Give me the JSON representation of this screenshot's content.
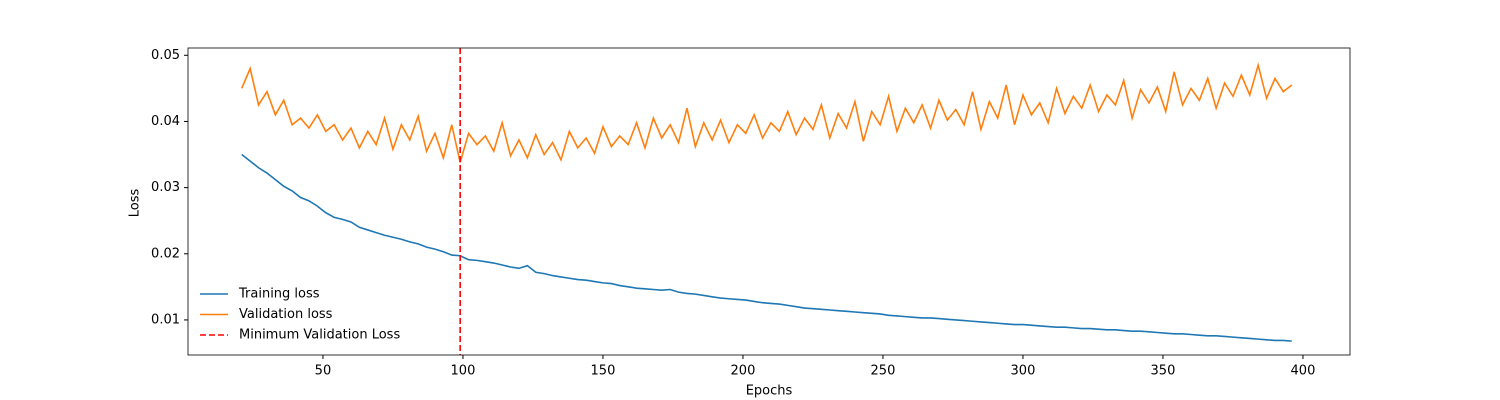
{
  "chart_data": {
    "type": "line",
    "xlabel": "Epochs",
    "ylabel": "Loss",
    "xlim": [
      1.8,
      416.8
    ],
    "ylim": [
      0.0047,
      0.0511
    ],
    "xticks": [
      50,
      100,
      150,
      200,
      250,
      300,
      350,
      400
    ],
    "yticks": [
      0.01,
      0.02,
      0.03,
      0.04,
      0.05
    ],
    "legend": "lower left",
    "x": [
      21,
      24,
      27,
      30,
      33,
      36,
      39,
      42,
      45,
      48,
      51,
      54,
      57,
      60,
      63,
      66,
      69,
      72,
      75,
      78,
      81,
      84,
      87,
      90,
      93,
      96,
      99,
      102,
      105,
      108,
      111,
      114,
      117,
      120,
      123,
      126,
      129,
      132,
      135,
      138,
      141,
      144,
      147,
      150,
      153,
      156,
      159,
      162,
      165,
      168,
      171,
      174,
      177,
      180,
      183,
      186,
      189,
      192,
      195,
      198,
      201,
      204,
      207,
      210,
      213,
      216,
      219,
      222,
      225,
      228,
      231,
      234,
      237,
      240,
      243,
      246,
      249,
      252,
      255,
      258,
      261,
      264,
      267,
      270,
      273,
      276,
      279,
      282,
      285,
      288,
      291,
      294,
      297,
      300,
      303,
      306,
      309,
      312,
      315,
      318,
      321,
      324,
      327,
      330,
      333,
      336,
      339,
      342,
      345,
      348,
      351,
      354,
      357,
      360,
      363,
      366,
      369,
      372,
      375,
      378,
      381,
      384,
      387,
      390,
      393,
      396
    ],
    "series": [
      {
        "name": "Training loss",
        "color": "#1f77b4",
        "values": [
          0.035,
          0.034,
          0.033,
          0.0322,
          0.0312,
          0.0302,
          0.0295,
          0.0285,
          0.028,
          0.0272,
          0.0262,
          0.0255,
          0.0252,
          0.0248,
          0.024,
          0.0236,
          0.0232,
          0.0228,
          0.0225,
          0.0222,
          0.0218,
          0.0215,
          0.021,
          0.0207,
          0.0203,
          0.0198,
          0.0197,
          0.0191,
          0.019,
          0.0188,
          0.0186,
          0.0183,
          0.018,
          0.0178,
          0.0182,
          0.0172,
          0.017,
          0.0167,
          0.0165,
          0.0163,
          0.0161,
          0.016,
          0.0158,
          0.0156,
          0.0155,
          0.0152,
          0.015,
          0.0148,
          0.0147,
          0.0146,
          0.0145,
          0.0146,
          0.0142,
          0.014,
          0.0139,
          0.0137,
          0.0135,
          0.0133,
          0.0132,
          0.0131,
          0.013,
          0.0128,
          0.0126,
          0.0125,
          0.0124,
          0.0122,
          0.012,
          0.0118,
          0.0117,
          0.0116,
          0.0115,
          0.0114,
          0.0113,
          0.0112,
          0.0111,
          0.011,
          0.0109,
          0.0107,
          0.0106,
          0.0105,
          0.0104,
          0.0103,
          0.0103,
          0.0102,
          0.0101,
          0.01,
          0.0099,
          0.0098,
          0.0097,
          0.0096,
          0.0095,
          0.0094,
          0.0093,
          0.0093,
          0.0092,
          0.0091,
          0.009,
          0.0089,
          0.0089,
          0.0088,
          0.0087,
          0.0087,
          0.0086,
          0.0085,
          0.0085,
          0.0084,
          0.0083,
          0.0083,
          0.0082,
          0.0081,
          0.008,
          0.0079,
          0.0079,
          0.0078,
          0.0077,
          0.0076,
          0.0076,
          0.0075,
          0.0074,
          0.0073,
          0.0072,
          0.0071,
          0.007,
          0.0069,
          0.0069,
          0.0068
        ]
      },
      {
        "name": "Validation loss",
        "color": "#ff7f0e",
        "values": [
          0.045,
          0.048,
          0.0425,
          0.0445,
          0.041,
          0.0432,
          0.0395,
          0.0405,
          0.039,
          0.041,
          0.0385,
          0.0395,
          0.0372,
          0.039,
          0.036,
          0.0385,
          0.0365,
          0.0405,
          0.0358,
          0.0395,
          0.0372,
          0.0408,
          0.0355,
          0.0382,
          0.0345,
          0.0395,
          0.0338,
          0.0382,
          0.0365,
          0.0378,
          0.0355,
          0.0398,
          0.0348,
          0.0372,
          0.0345,
          0.038,
          0.035,
          0.0368,
          0.0342,
          0.0385,
          0.036,
          0.0375,
          0.0352,
          0.0392,
          0.0362,
          0.0378,
          0.0365,
          0.0398,
          0.036,
          0.0405,
          0.0375,
          0.0395,
          0.0368,
          0.042,
          0.0362,
          0.0398,
          0.0372,
          0.0402,
          0.0368,
          0.0395,
          0.0382,
          0.041,
          0.0375,
          0.0398,
          0.0385,
          0.0415,
          0.038,
          0.0405,
          0.0388,
          0.0425,
          0.0375,
          0.0412,
          0.039,
          0.043,
          0.037,
          0.0415,
          0.0395,
          0.0438,
          0.0385,
          0.042,
          0.0398,
          0.0425,
          0.039,
          0.0432,
          0.0402,
          0.0418,
          0.0395,
          0.0445,
          0.0388,
          0.043,
          0.0405,
          0.0455,
          0.0395,
          0.044,
          0.041,
          0.0428,
          0.0398,
          0.045,
          0.0412,
          0.0438,
          0.042,
          0.0455,
          0.0415,
          0.044,
          0.0425,
          0.0462,
          0.0405,
          0.0448,
          0.0428,
          0.0452,
          0.0415,
          0.0475,
          0.0425,
          0.045,
          0.0432,
          0.0465,
          0.042,
          0.0458,
          0.0438,
          0.047,
          0.044,
          0.0485,
          0.0435,
          0.0465,
          0.0445,
          0.0455
        ]
      }
    ],
    "vlines": [
      {
        "name": "Minimum Validation Loss",
        "x": 99,
        "color": "#ff0000",
        "style": "dashed"
      }
    ]
  }
}
